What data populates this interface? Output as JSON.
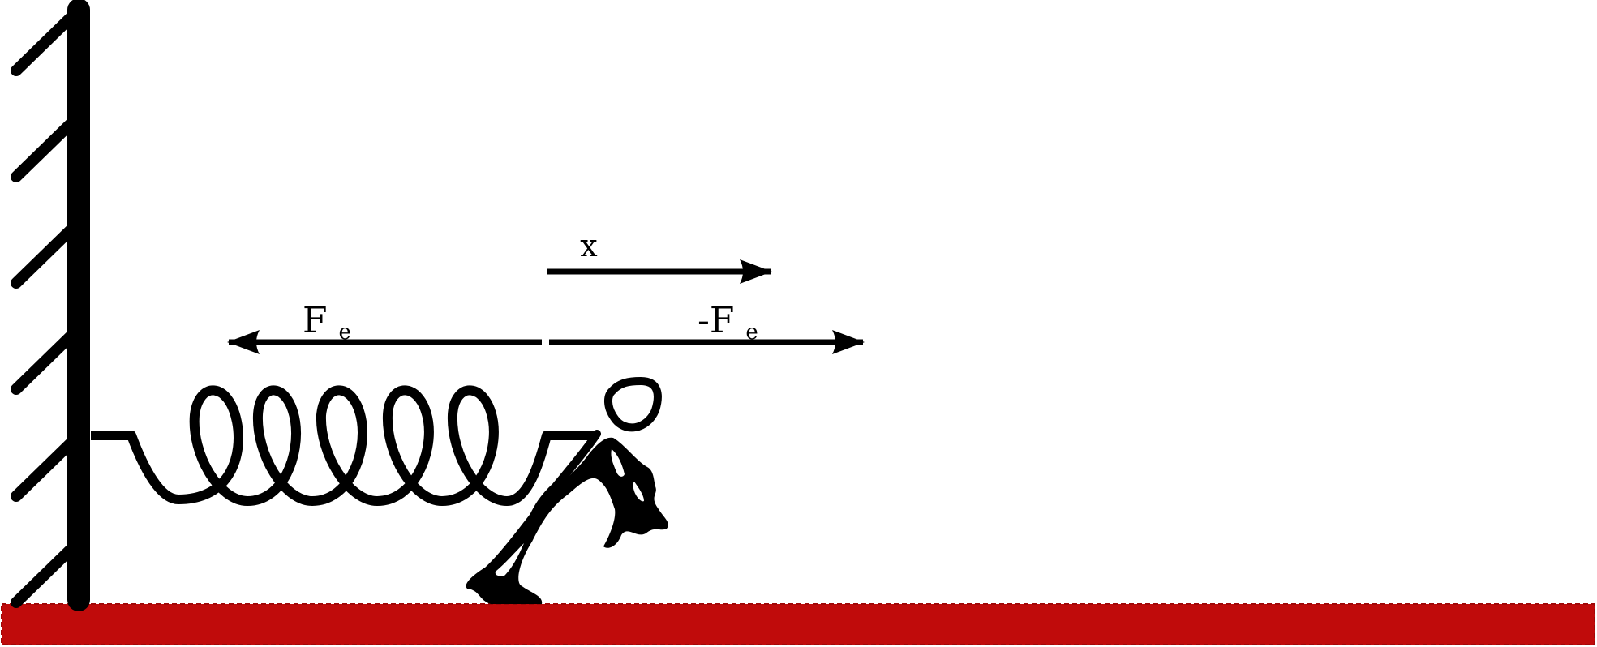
{
  "labels": {
    "displacement": "x",
    "spring_force_main": "F",
    "spring_force_sub": "e",
    "applied_force_main": "-F",
    "applied_force_sub": "e"
  },
  "colors": {
    "ink": "#000000",
    "floor": "#c00b0b",
    "floor_border": "#a00808",
    "background": "#ffffff"
  },
  "figure": {
    "wall_hatch_count": 6,
    "spring_loop_count": 5
  }
}
